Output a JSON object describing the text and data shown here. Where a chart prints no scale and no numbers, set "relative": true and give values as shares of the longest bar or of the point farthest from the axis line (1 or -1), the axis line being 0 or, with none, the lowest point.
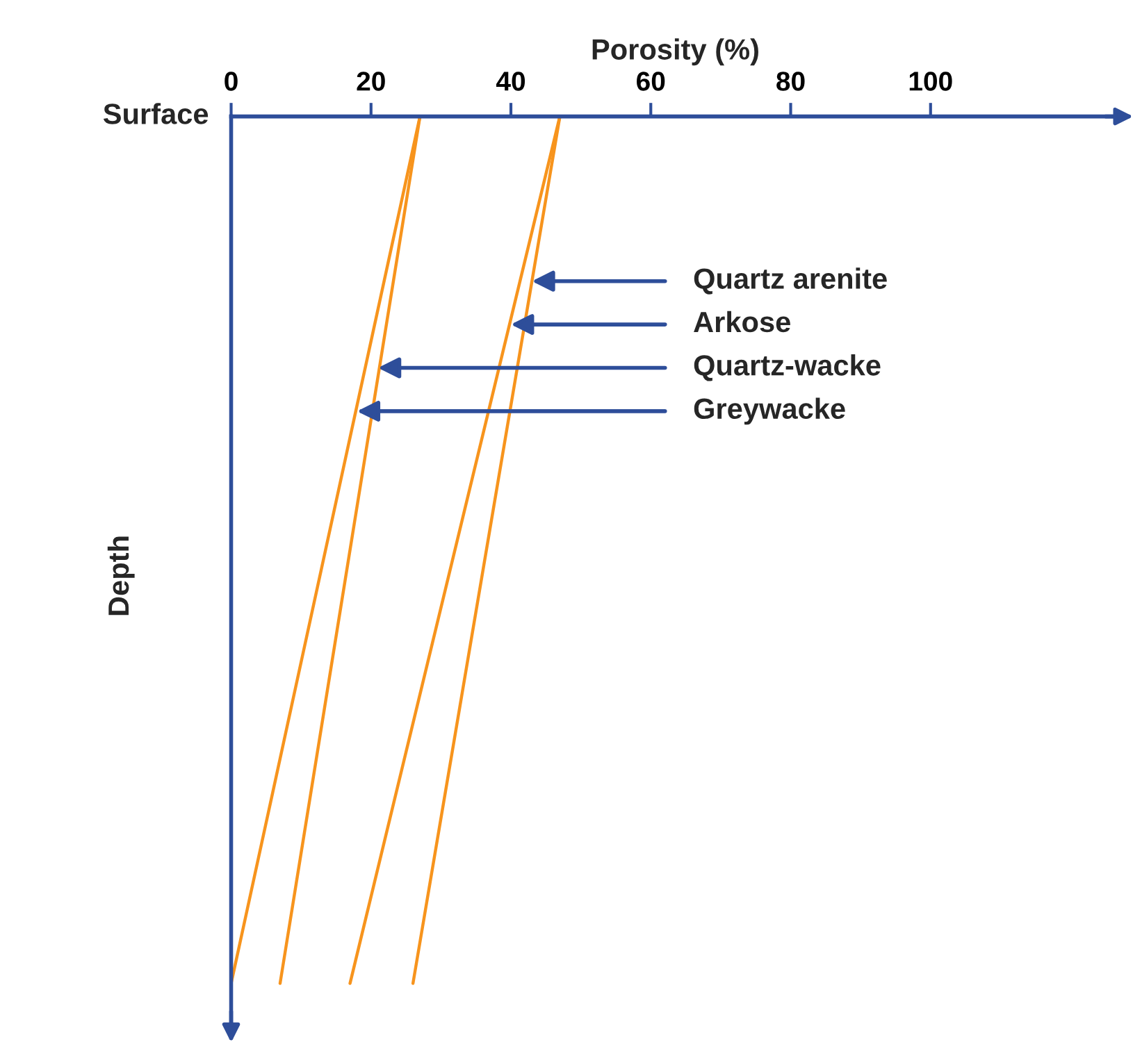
{
  "chart_data": {
    "type": "line",
    "relative": true,
    "xlabel": "Porosity (%)",
    "ylabel": "Depth",
    "xlim": [
      0,
      127
    ],
    "xticks": [
      0,
      20,
      40,
      60,
      80,
      100
    ],
    "tick_labels": "x",
    "grid": false,
    "marker": "none",
    "line_style": "solid",
    "series": [
      {
        "color": "#f7941d",
        "x": [
          27,
          0
        ],
        "values": [
          0,
          -1
        ]
      },
      {
        "color": "#f7941d",
        "x": [
          27,
          7
        ],
        "values": [
          0,
          -1
        ]
      },
      {
        "color": "#f7941d",
        "x": [
          47,
          17
        ],
        "values": [
          0,
          -1
        ]
      },
      {
        "color": "#f7941d",
        "x": [
          47,
          26
        ],
        "values": [
          0,
          -1
        ]
      }
    ],
    "annotations": [
      "Surface",
      {
        "text": "Quartz arenite",
        "x": 43,
        "y": -0.19
      },
      {
        "text": "Arkose",
        "x": 40,
        "y": -0.24
      },
      {
        "text": "Quartz-wacke",
        "x": 21,
        "y": -0.29
      },
      {
        "text": "Greywacke",
        "x": 18,
        "y": -0.34
      }
    ]
  }
}
